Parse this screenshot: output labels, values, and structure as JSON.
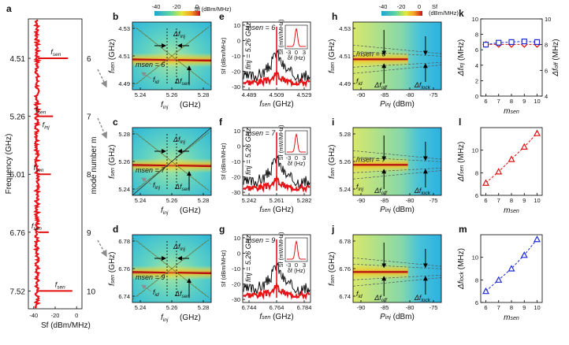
{
  "panel_labels": [
    "a",
    "b",
    "c",
    "d",
    "e",
    "f",
    "g",
    "h",
    "i",
    "j",
    "k",
    "l",
    "m"
  ],
  "colors": {
    "spectrum_red": "#e8141a",
    "sen_red": "#e01010",
    "blue": "#1b2bd6",
    "inj_yellow": "#d6a21a",
    "gray_arrow": "#8c8c8c"
  },
  "chart_data": [
    {
      "panel": "a",
      "type": "line",
      "ylabel": "Frequency (GHz)",
      "xlabel": "Sf (dBm/MHz)",
      "xticks": [
        "-40",
        "-20",
        "0"
      ],
      "yticks": [
        "4.51",
        "5.26",
        "6.01",
        "6.76",
        "7.52"
      ],
      "ylim": [
        4.0,
        7.75
      ],
      "peaks": [
        {
          "f": 4.51,
          "level": -8,
          "label": "fsen",
          "mode": "6"
        },
        {
          "f": 5.26,
          "level": -25,
          "label": "finj",
          "mode": "7"
        },
        {
          "f": 5.26,
          "level": -22,
          "label": "fsen",
          "mode": ""
        },
        {
          "f": 6.01,
          "level": -24,
          "label": "fsen",
          "mode": "8"
        },
        {
          "f": 6.76,
          "level": -26,
          "label": "fsen",
          "mode": "9"
        },
        {
          "f": 7.52,
          "level": -4,
          "label": "fsen",
          "mode": "10"
        }
      ],
      "right_label": "mode number m"
    },
    {
      "panel": "b",
      "type": "heatmap",
      "ylabel": "fsen (GHz)",
      "xlabel": "finj (GHz)",
      "xticks": [
        "5.24",
        "5.26",
        "5.28"
      ],
      "yticks": [
        "4.53",
        "4.51",
        "4.49"
      ],
      "colorbar": {
        "ticks": [
          "-40",
          "-20",
          "0"
        ],
        "label": "Sf (dBm/MHz)"
      },
      "annotations": [
        "Δfinj",
        "msen = 6",
        "fid",
        "Δfsen"
      ]
    },
    {
      "panel": "c",
      "type": "heatmap",
      "ylabel": "fsen (GHz)",
      "xlabel": "finj (GHz)",
      "xticks": [
        "5.24",
        "5.26",
        "5.28"
      ],
      "yticks": [
        "5.28",
        "5.26",
        "5.24"
      ],
      "annotations": [
        "Δfinj",
        "msen = 7",
        "finj",
        "Δfsen"
      ]
    },
    {
      "panel": "d",
      "type": "heatmap",
      "ylabel": "fsen (GHz)",
      "xlabel": "finj (GHz)",
      "xticks": [
        "5.24",
        "5.26",
        "5.28"
      ],
      "yticks": [
        "6.78",
        "6.76",
        "6.74"
      ],
      "annotations": [
        "Δfinj",
        "msen = 9",
        "fid",
        "Δfsen"
      ]
    },
    {
      "panel": "e",
      "type": "line",
      "ylabel": "Sf (dBm/MHz)",
      "xlabel": "fsen (GHz)",
      "xticks": [
        "4.489",
        "4.509",
        "4.529"
      ],
      "yticks": [
        "10",
        "0",
        "-10",
        "-20",
        "-30"
      ],
      "annotations": [
        "msen = 6",
        "finj = 5.26 GHz"
      ],
      "inset": {
        "ylabel": "Sf (mW/MHz)",
        "xlabel": "δf (Hz)",
        "xticks": [
          "-3",
          "0",
          "3"
        ]
      }
    },
    {
      "panel": "f",
      "type": "line",
      "ylabel": "Sf (dBm/MHz)",
      "xlabel": "fsen (GHz)",
      "xticks": [
        "5.242",
        "5.261",
        "5.282"
      ],
      "yticks": [
        "10",
        "0",
        "-10",
        "-20",
        "-30"
      ],
      "annotations": [
        "msen = 7",
        "finj = 5.26 GHz"
      ],
      "inset": {
        "ylabel": "Sf (mW/MHz)",
        "xlabel": "δf (Hz)",
        "xticks": [
          "-3",
          "0",
          "3"
        ]
      }
    },
    {
      "panel": "g",
      "type": "line",
      "ylabel": "Sf (dBm/MHz)",
      "xlabel": "fsen (GHz)",
      "xticks": [
        "6.744",
        "6.764",
        "6.784"
      ],
      "yticks": [
        "10",
        "0",
        "-10",
        "-20",
        "-30"
      ],
      "annotations": [
        "msen = 9",
        "finj = 5.26 GHz"
      ],
      "inset": {
        "ylabel": "Sf (mW/MHz)",
        "xlabel": "δf (Hz)",
        "xticks": [
          "-3",
          "0",
          "3"
        ]
      }
    },
    {
      "panel": "h",
      "type": "heatmap",
      "ylabel": "fsen (GHz)",
      "xlabel": "Pinj (dBm)",
      "xticks": [
        "-90",
        "-85",
        "-80",
        "-75"
      ],
      "yticks": [
        "4.53",
        "4.51",
        "4.49"
      ],
      "colorbar": {
        "ticks": [
          "-40",
          "-20",
          "0"
        ],
        "label": "Sf (dBm/MHz)"
      },
      "annotations": [
        "msen = 6",
        "fid",
        "Δfoff",
        "Δflock"
      ]
    },
    {
      "panel": "i",
      "type": "heatmap",
      "ylabel": "fsen (GHz)",
      "xlabel": "Pinj (dBm)",
      "xticks": [
        "-90",
        "-85",
        "-80",
        "-75"
      ],
      "yticks": [
        "5.28",
        "5.26",
        "5.24"
      ],
      "annotations": [
        "msen = 7",
        "finj",
        "Δfoff",
        "Δflock"
      ]
    },
    {
      "panel": "j",
      "type": "heatmap",
      "ylabel": "fsen (GHz)",
      "xlabel": "Pinj (dBm)",
      "xticks": [
        "-90",
        "-85",
        "-80",
        "-75"
      ],
      "yticks": [
        "6.78",
        "6.76",
        "6.74"
      ],
      "annotations": [
        "fid",
        "Δfoff",
        "Δflock"
      ]
    },
    {
      "panel": "k",
      "type": "scatter",
      "xlabel": "msen",
      "ylabel_left": "Δfinj (MHz)",
      "ylabel_right": "Δfoff (MHz)",
      "x": [
        6,
        7,
        8,
        9,
        10
      ],
      "xlim": [
        5.6,
        10.4
      ],
      "ylim_left": [
        0,
        10
      ],
      "ylim_right": [
        4,
        10
      ],
      "yticks_left": [
        "0",
        "2",
        "4",
        "6",
        "8",
        "10"
      ],
      "yticks_right": [
        "4",
        "6",
        "8",
        "10"
      ],
      "series": [
        {
          "name": "Δfinj",
          "axis": "left",
          "values": [
            6.7,
            6.7,
            6.7,
            6.7,
            6.7
          ],
          "color": "#e01010",
          "marker": "diamond"
        },
        {
          "name": "Δfoff",
          "axis": "right",
          "values": [
            8.0,
            8.15,
            8.2,
            8.25,
            8.2
          ],
          "color": "#1b2bd6",
          "marker": "square"
        }
      ]
    },
    {
      "panel": "l",
      "type": "scatter",
      "xlabel": "msen",
      "ylabel": "Δfsen (MHz)",
      "x": [
        6,
        7,
        8,
        9,
        10
      ],
      "xlim": [
        5.6,
        10.4
      ],
      "ylim": [
        6,
        12
      ],
      "yticks": [
        "6",
        "8",
        "10"
      ],
      "series": [
        {
          "values": [
            7.1,
            8.1,
            9.2,
            10.3,
            11.5
          ],
          "color": "#e01010",
          "marker": "triangle"
        }
      ]
    },
    {
      "panel": "m",
      "type": "scatter",
      "xlabel": "msen",
      "ylabel": "Δflock (MHz)",
      "x": [
        6,
        7,
        8,
        9,
        10
      ],
      "xlim": [
        5.6,
        10.4
      ],
      "ylim": [
        6,
        12
      ],
      "yticks": [
        "6",
        "8",
        "10"
      ],
      "series": [
        {
          "values": [
            7.0,
            8.0,
            9.0,
            10.2,
            11.6
          ],
          "color": "#1b2bd6",
          "marker": "triangle"
        }
      ]
    }
  ]
}
